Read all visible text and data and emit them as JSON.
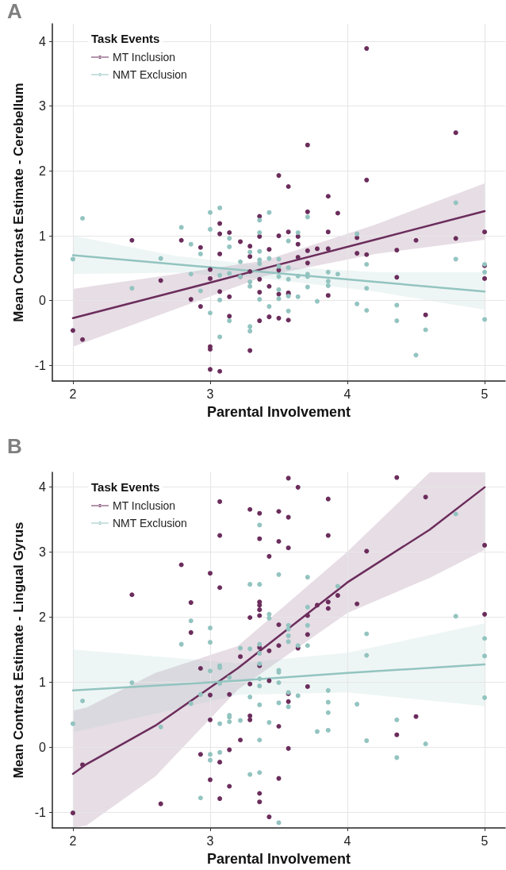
{
  "chart_data": [
    {
      "type": "scatter",
      "title": "A",
      "xlabel": "Parental Involvement",
      "ylabel": "Mean Contrast Estimate - Cerebellum",
      "legend_title": "Task Events",
      "legend": "top left",
      "grid": true,
      "marker": "circle",
      "xlim": [
        1.85,
        5.15
      ],
      "ylim": [
        -1.24,
        4.27
      ],
      "xticks": [
        2,
        3,
        4,
        5
      ],
      "yticks": [
        -1,
        0,
        1,
        2,
        3,
        4
      ],
      "series": [
        {
          "name": "MT Inclusion",
          "color": "#6b2d5c",
          "x": [
            2.0,
            2.07,
            2.43,
            2.64,
            2.79,
            2.86,
            2.93,
            2.93,
            3.0,
            3.0,
            3.0,
            3.0,
            3.0,
            3.07,
            3.07,
            3.07,
            3.07,
            3.07,
            3.14,
            3.14,
            3.14,
            3.22,
            3.22,
            3.29,
            3.29,
            3.29,
            3.29,
            3.36,
            3.36,
            3.36,
            3.36,
            3.36,
            3.43,
            3.43,
            3.43,
            4.14,
            4.79,
            3.71,
            3.5,
            4.14,
            3.57,
            3.86,
            3.71,
            3.93,
            3.5,
            3.57,
            3.64,
            3.64,
            3.86,
            4.07,
            4.79,
            5.0,
            4.5,
            3.71,
            3.78,
            3.86,
            4.07,
            4.14,
            4.36,
            3.64,
            3.71,
            3.5,
            5.0,
            4.36,
            5.0,
            3.5,
            3.57,
            3.57,
            3.86,
            3.5,
            3.57,
            4.57
          ],
          "values": [
            -0.46,
            -0.6,
            0.93,
            0.31,
            0.93,
            0.02,
            0.82,
            -0.09,
            0.48,
            0.34,
            -0.71,
            -0.75,
            -1.06,
            1.19,
            1.03,
            0.72,
            0.14,
            -1.09,
            1.05,
            0.06,
            -0.24,
            0.91,
            0.37,
            0.84,
            0.68,
            0.45,
            -0.77,
            1.3,
            0.99,
            0.33,
            0.13,
            -0.31,
            0.79,
            0.22,
            -0.25,
            3.89,
            2.59,
            2.4,
            1.93,
            1.86,
            1.76,
            1.61,
            1.37,
            1.35,
            1.0,
            1.06,
            0.99,
            0.87,
            1.06,
            0.97,
            0.96,
            1.06,
            0.93,
            0.77,
            0.8,
            0.8,
            0.73,
            0.71,
            0.78,
            0.67,
            0.58,
            0.47,
            0.54,
            0.36,
            0.34,
            0.1,
            0.12,
            0.1,
            0.08,
            -0.27,
            -0.3,
            -0.22
          ]
        },
        {
          "name": "NMT Exclusion",
          "color": "#93c4c0",
          "x": [
            2.07,
            2.0,
            2.43,
            2.64,
            2.79,
            2.86,
            2.86,
            2.93,
            2.93,
            3.0,
            3.0,
            3.0,
            3.07,
            3.07,
            3.07,
            3.07,
            3.14,
            3.14,
            3.14,
            3.14,
            3.22,
            3.22,
            3.29,
            3.29,
            3.29,
            3.29,
            3.29,
            3.36,
            3.36,
            3.36,
            3.36,
            3.36,
            3.36,
            3.43,
            3.43,
            3.43,
            4.79,
            3.71,
            3.64,
            3.57,
            4.07,
            4.79,
            4.14,
            5.0,
            5.0,
            3.5,
            3.5,
            3.5,
            3.57,
            3.57,
            3.64,
            3.71,
            3.71,
            3.86,
            3.86,
            3.86,
            3.93,
            3.71,
            4.14,
            3.5,
            3.5,
            3.57,
            3.64,
            3.78,
            4.07,
            4.14,
            4.36,
            4.36,
            3.57,
            4.57,
            4.5,
            5.0
          ],
          "values": [
            1.27,
            0.64,
            0.19,
            0.65,
            1.13,
            0.87,
            0.41,
            0.72,
            0.15,
            1.36,
            1.1,
            -0.19,
            1.43,
            0.39,
            0.01,
            -0.56,
            0.96,
            0.83,
            0.42,
            -0.31,
            0.6,
            0.37,
            0.75,
            0.29,
            0.22,
            -0.4,
            -0.47,
            1.24,
            1.05,
            0.76,
            0.63,
            0.57,
            0.02,
            1.36,
            0.65,
            -0.09,
            1.51,
            1.29,
            1.05,
            0.92,
            1.03,
            0.64,
            0.56,
            0.56,
            0.44,
            0.64,
            0.53,
            0.37,
            0.51,
            0.33,
            0.38,
            0.41,
            0.37,
            0.44,
            0.3,
            0.23,
            0.41,
            0.21,
            0.19,
            0.17,
            0.03,
            0.07,
            0.06,
            -0.01,
            -0.05,
            -0.15,
            -0.07,
            -0.31,
            -0.16,
            -0.45,
            -0.84,
            -0.29
          ]
        },
        {
          "type": "line",
          "color": "#6b2d5c",
          "marker": "none",
          "line_style": "solid",
          "x": [
            2,
            2.75,
            3.4,
            4.2,
            5
          ],
          "values": [
            -0.27,
            0.14,
            0.5,
            0.94,
            1.38
          ],
          "lower": [
            -0.71,
            -0.13,
            0.38,
            0.72,
            0.94
          ],
          "upper": [
            0.18,
            0.41,
            0.62,
            1.17,
            1.81
          ]
        },
        {
          "type": "line",
          "color": "#93c4c0",
          "marker": "none",
          "line_style": "solid",
          "x": [
            2,
            2.75,
            3.4,
            4.2,
            5
          ],
          "values": [
            0.7,
            0.56,
            0.44,
            0.29,
            0.14
          ],
          "lower": [
            0.41,
            0.43,
            0.34,
            0.14,
            -0.14
          ],
          "upper": [
            1.0,
            0.69,
            0.54,
            0.44,
            0.44
          ]
        }
      ]
    },
    {
      "type": "scatter",
      "title": "B",
      "xlabel": "Parental Involvement",
      "ylabel": "Mean Contrast Estimate - Lingual Gyrus",
      "legend_title": "Task Events",
      "legend": "top left",
      "grid": true,
      "marker": "circle",
      "xlim": [
        1.85,
        5.15
      ],
      "ylim": [
        -1.24,
        4.22
      ],
      "xticks": [
        2,
        3,
        4,
        5
      ],
      "yticks": [
        -1,
        0,
        1,
        2,
        3,
        4
      ],
      "series": [
        {
          "name": "MT Inclusion",
          "color": "#6b2d5c",
          "x": [
            2.0,
            2.07,
            2.43,
            2.64,
            2.79,
            2.86,
            2.86,
            2.93,
            2.93,
            3.0,
            3.0,
            3.0,
            3.0,
            3.07,
            3.07,
            3.07,
            3.07,
            3.07,
            3.14,
            3.14,
            3.14,
            3.22,
            3.22,
            3.29,
            3.29,
            3.29,
            3.29,
            3.29,
            3.36,
            3.36,
            3.36,
            3.36,
            3.36,
            3.36,
            3.36,
            3.36,
            3.36,
            3.36,
            3.43,
            3.43,
            3.43,
            3.43,
            3.57,
            4.36,
            3.64,
            4.57,
            3.86,
            3.5,
            3.57,
            3.86,
            3.5,
            3.57,
            4.14,
            5.0,
            3.93,
            3.78,
            3.86,
            3.86,
            4.07,
            3.71,
            3.5,
            3.71,
            3.5,
            3.64,
            5.0,
            3.71,
            3.57,
            3.57,
            3.5,
            4.5,
            4.36,
            3.57,
            3.5
          ],
          "values": [
            -1.01,
            -0.27,
            2.34,
            -0.87,
            2.8,
            2.22,
            1.76,
            1.21,
            -0.11,
            2.67,
            0.8,
            0.42,
            -0.5,
            3.77,
            3.25,
            2.45,
            -0.23,
            -0.79,
            0.81,
            -0.04,
            -0.6,
            1.39,
            0.11,
            3.65,
            1.99,
            0.97,
            0.48,
            0.42,
            3.59,
            3.2,
            2.23,
            2.18,
            2.11,
            2.02,
            1.53,
            1.25,
            -0.71,
            -0.84,
            2.93,
            1.48,
            1.02,
            -1.07,
            4.13,
            4.14,
            3.99,
            3.84,
            3.81,
            3.62,
            3.53,
            3.25,
            3.16,
            3.06,
            3.01,
            3.1,
            2.33,
            2.18,
            2.23,
            2.13,
            2.2,
            2.02,
            1.88,
            1.73,
            1.56,
            1.52,
            2.04,
            0.93,
            0.82,
            0.7,
            0.32,
            0.47,
            0.19,
            -0.02,
            -0.48
          ]
        },
        {
          "name": "NMT Exclusion",
          "color": "#93c4c0",
          "x": [
            2.0,
            2.07,
            2.43,
            2.64,
            2.79,
            2.86,
            2.86,
            2.93,
            2.93,
            3.0,
            3.0,
            3.0,
            3.0,
            3.0,
            3.07,
            3.07,
            3.07,
            3.07,
            3.07,
            3.14,
            3.14,
            3.14,
            3.14,
            3.22,
            3.22,
            3.29,
            3.29,
            3.29,
            3.29,
            3.36,
            3.36,
            3.36,
            3.36,
            3.36,
            3.36,
            3.36,
            3.36,
            3.36,
            3.36,
            3.43,
            3.43,
            3.43,
            4.79,
            3.5,
            3.71,
            3.93,
            3.71,
            3.71,
            4.79,
            3.57,
            3.57,
            3.57,
            3.57,
            3.64,
            3.71,
            4.14,
            4.14,
            5.0,
            5.0,
            5.0,
            3.5,
            3.5,
            3.5,
            3.57,
            3.64,
            3.57,
            3.5,
            3.86,
            3.86,
            3.86,
            4.07,
            3.78,
            3.86,
            4.14,
            4.36,
            4.36,
            4.57,
            3.5
          ],
          "values": [
            0.36,
            0.71,
            0.99,
            0.31,
            1.58,
            1.94,
            0.67,
            0.81,
            -0.78,
            1.83,
            1.61,
            1.17,
            -0.11,
            -0.2,
            1.25,
            1.22,
            0.98,
            0.36,
            -0.08,
            1.07,
            0.49,
            0.46,
            0.39,
            1.52,
            0.41,
            2.5,
            1.51,
            0.77,
            -0.42,
            3.41,
            2.5,
            1.58,
            1.44,
            1.28,
            1.05,
            0.94,
            0.65,
            0.11,
            -0.39,
            2.04,
            1.98,
            0.38,
            3.58,
            2.65,
            2.61,
            2.47,
            2.15,
            1.87,
            2.01,
            1.87,
            1.81,
            1.71,
            1.62,
            1.56,
            1.56,
            1.74,
            1.41,
            1.67,
            1.4,
            0.76,
            1.18,
            1.15,
            0.99,
            0.84,
            0.79,
            0.62,
            0.68,
            0.87,
            0.69,
            0.53,
            0.66,
            0.24,
            0.26,
            0.1,
            0.42,
            -0.16,
            0.05,
            -1.16
          ]
        },
        {
          "type": "line",
          "color": "#6b2d5c",
          "marker": "none",
          "line_style": "solid",
          "x": [
            2,
            2.1,
            2.6,
            3.2,
            4,
            4.6,
            5
          ],
          "values": [
            -0.41,
            -0.26,
            0.33,
            1.21,
            2.53,
            3.34,
            3.99
          ],
          "lower": [
            -1.24,
            -1.2,
            -0.45,
            0.88,
            2.06,
            2.6,
            3.03
          ],
          "upper": [
            0.56,
            0.61,
            1.14,
            1.55,
            3.0,
            4.22,
            4.22
          ]
        },
        {
          "type": "line",
          "color": "#93c4c0",
          "marker": "none",
          "line_style": "solid",
          "x": [
            2,
            3.2,
            4,
            5
          ],
          "values": [
            0.87,
            1.02,
            1.14,
            1.27
          ],
          "lower": [
            0.23,
            0.8,
            0.84,
            0.63
          ],
          "upper": [
            1.5,
            1.29,
            1.45,
            1.9
          ]
        }
      ]
    }
  ]
}
